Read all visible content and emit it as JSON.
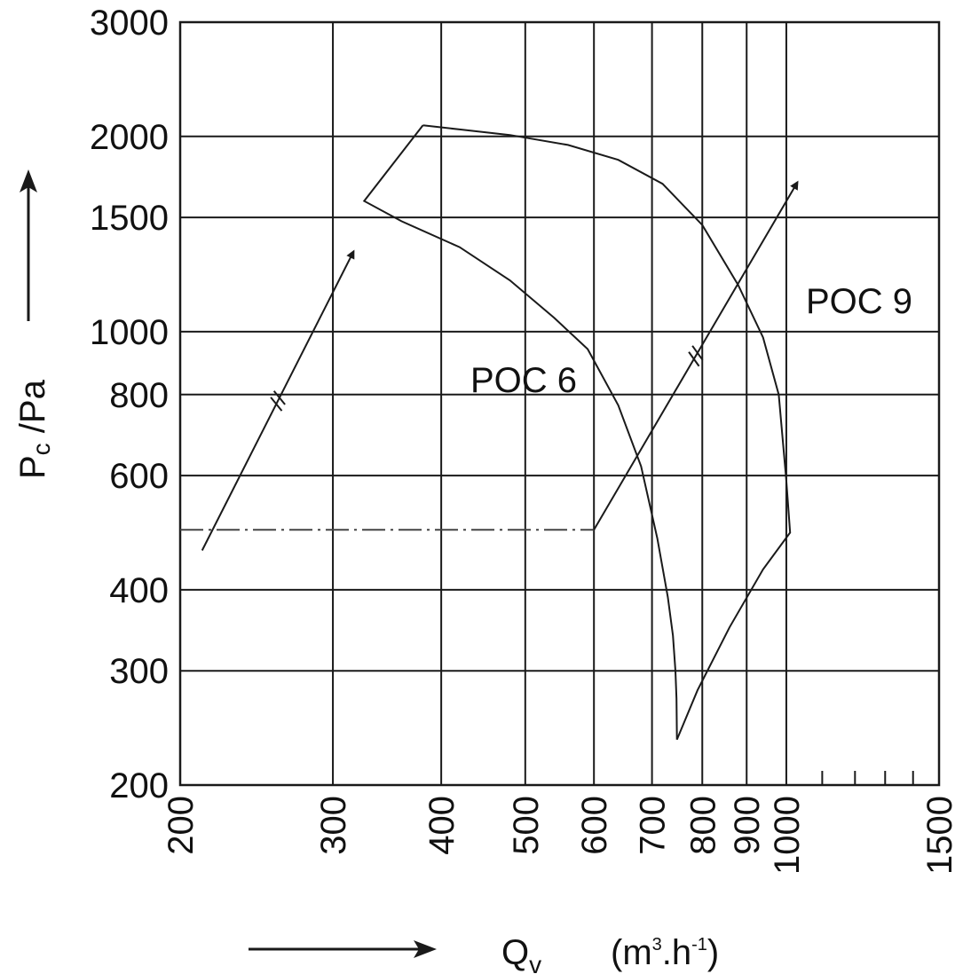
{
  "chart_data": {
    "type": "line",
    "title": "",
    "xscale": "log",
    "yscale": "log",
    "xlim": [
      200,
      1500
    ],
    "ylim": [
      200,
      3000
    ],
    "grid": true,
    "x_ticks": [
      200,
      300,
      400,
      500,
      600,
      700,
      800,
      900,
      1000,
      1500
    ],
    "x_tick_labels": [
      "200",
      "300",
      "400",
      "500",
      "600",
      "700",
      "800",
      "900",
      "1000",
      "1500"
    ],
    "x_minor_ticks": [
      1100,
      1200,
      1300,
      1400
    ],
    "y_ticks": [
      200,
      300,
      400,
      600,
      800,
      1000,
      1500,
      2000,
      3000
    ],
    "y_tick_labels": [
      "200",
      "300",
      "400",
      "600",
      "800",
      "1000",
      "1500",
      "2000",
      "3000"
    ],
    "xlabel": {
      "main": "Q",
      "sub": "v",
      "unit_open": "(m",
      "unit_sup1": "3",
      "unit_mid": ".h",
      "unit_sup2": "-1",
      "unit_close": ")"
    },
    "ylabel": {
      "main": "P",
      "sub": "c",
      "unit": " /Pa"
    },
    "annotations": [
      "POC 6",
      "POC 9"
    ],
    "series": [
      {
        "label": "POC 6",
        "points": [
          [
            381,
            2080
          ],
          [
            326,
            1590
          ],
          [
            360,
            1480
          ],
          [
            420,
            1350
          ],
          [
            480,
            1200
          ],
          [
            540,
            1050
          ],
          [
            590,
            940
          ],
          [
            640,
            770
          ],
          [
            680,
            620
          ],
          [
            710,
            480
          ],
          [
            730,
            390
          ],
          [
            740,
            340
          ],
          [
            745,
            300
          ],
          [
            747,
            272
          ],
          [
            748,
            235
          ]
        ]
      },
      {
        "label": "POC 9",
        "points": [
          [
            748,
            235
          ],
          [
            790,
            280
          ],
          [
            860,
            350
          ],
          [
            940,
            430
          ],
          [
            1010,
            490
          ],
          [
            1000,
            590
          ],
          [
            980,
            800
          ],
          [
            940,
            980
          ],
          [
            880,
            1180
          ],
          [
            800,
            1460
          ],
          [
            720,
            1690
          ],
          [
            640,
            1840
          ],
          [
            560,
            1940
          ],
          [
            480,
            2010
          ],
          [
            420,
            2050
          ],
          [
            381,
            2080
          ]
        ]
      }
    ],
    "reference_lines": [
      {
        "style": "dashed",
        "points": [
          [
            200,
            495
          ],
          [
            600,
            495
          ]
        ]
      },
      {
        "style": "solid",
        "points": [
          [
            600,
            495
          ],
          [
            1030,
            1700
          ]
        ]
      },
      {
        "style": "arrow",
        "points": [
          [
            212,
            460
          ],
          [
            317,
            1330
          ]
        ]
      }
    ],
    "axis_arrows": [
      "up",
      "right"
    ]
  }
}
